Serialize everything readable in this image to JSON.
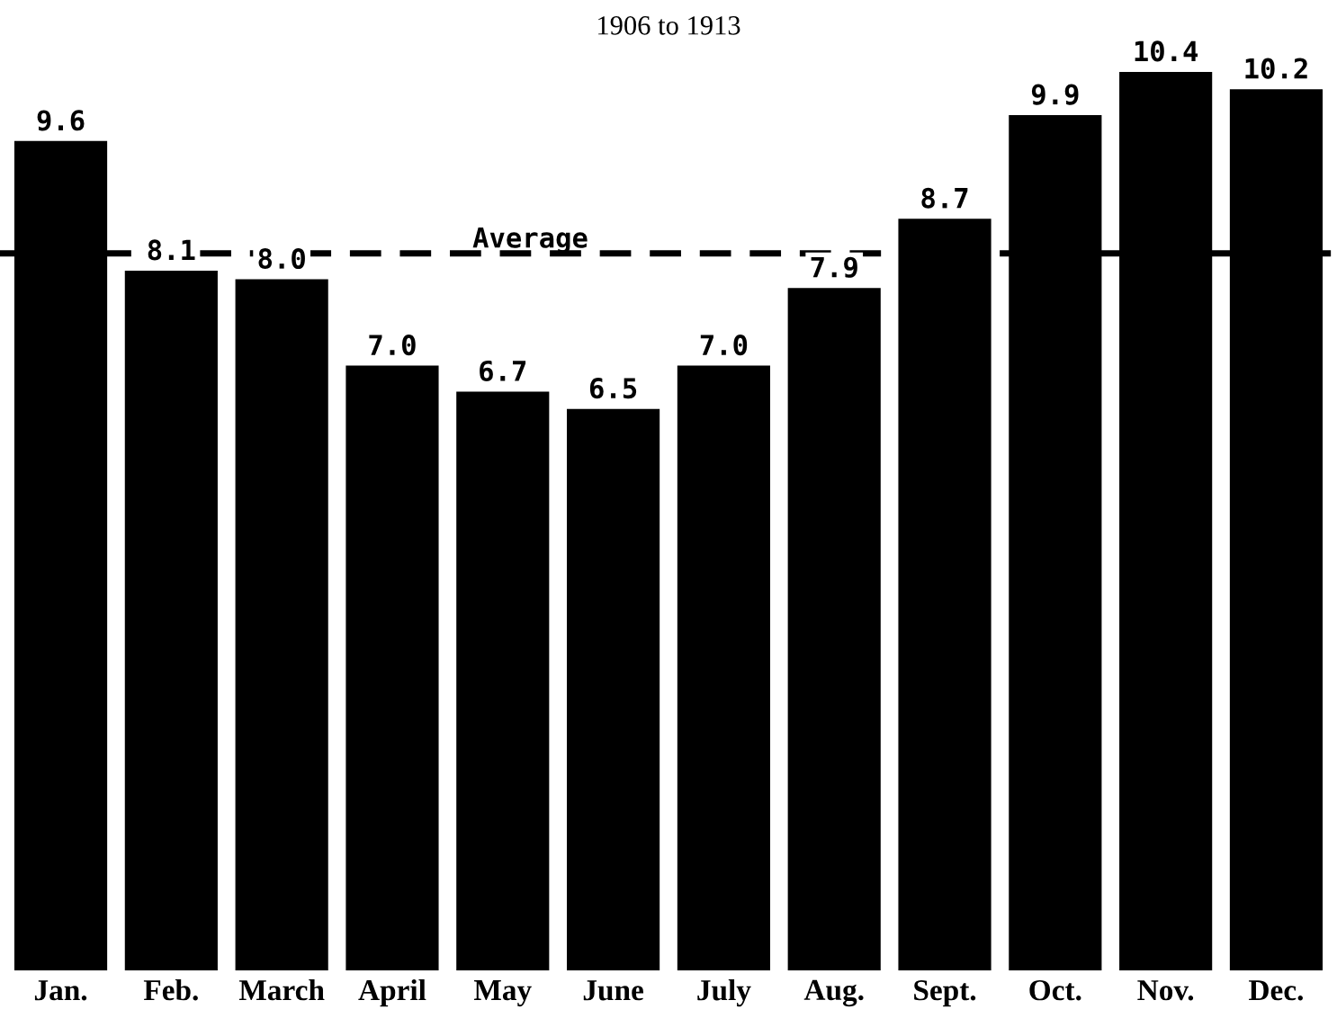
{
  "chart_data": {
    "type": "bar",
    "title": "1906 to 1913",
    "categories": [
      "Jan.",
      "Feb.",
      "March",
      "April",
      "May",
      "June",
      "July",
      "Aug.",
      "Sept.",
      "Oct.",
      "Nov.",
      "Dec."
    ],
    "values": [
      9.6,
      8.1,
      8.0,
      7.0,
      6.7,
      6.5,
      7.0,
      7.9,
      8.7,
      9.9,
      10.4,
      10.2
    ],
    "color": "#000000",
    "value_labels": [
      "9.6",
      "8.1",
      "8.0",
      "7.0",
      "6.7",
      "6.5",
      "7.0",
      "7.9",
      "8.7",
      "9.9",
      "10.4",
      "10.2"
    ],
    "ref_lines": [
      {
        "axis": "y",
        "value": 8.3,
        "label": "Average",
        "color": "#000000",
        "line_style": "dashed"
      }
    ]
  }
}
